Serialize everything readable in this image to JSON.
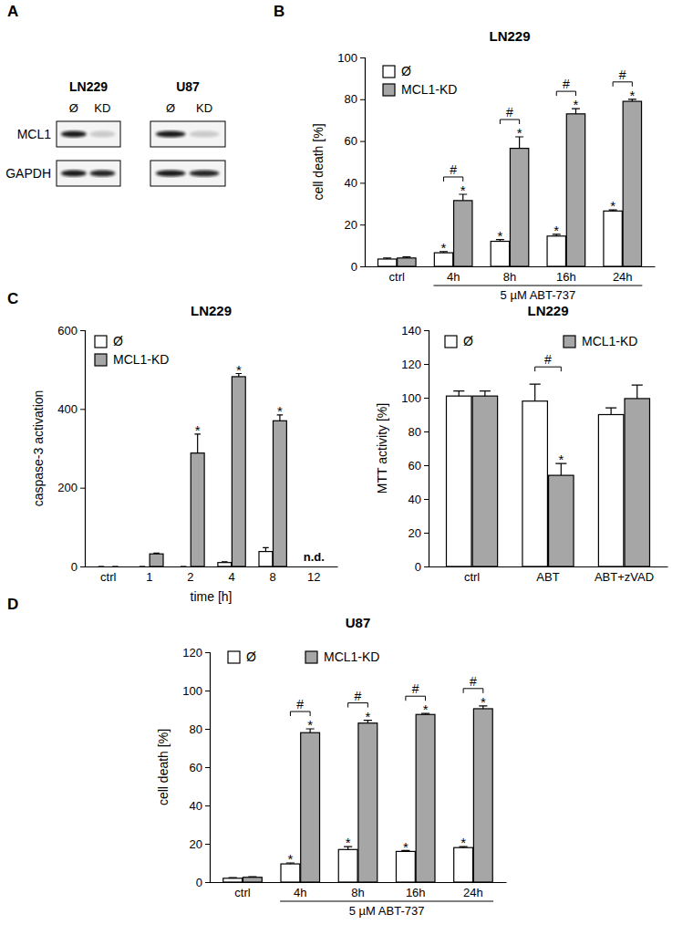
{
  "panels": [
    "A",
    "B",
    "C",
    "D"
  ],
  "blot": {
    "cell_lines": [
      "LN229",
      "U87"
    ],
    "lanes": [
      "Ø",
      "KD"
    ],
    "proteins": [
      "MCL1",
      "GAPDH"
    ]
  },
  "chart_data": [
    {
      "type": "bar",
      "title": "LN229",
      "y_label": "cell death [%]",
      "categories": [
        "ctrl",
        "4h",
        "8h",
        "16h",
        "24h"
      ],
      "series": [
        {
          "name": "Ø",
          "color": "#ffffff",
          "values": [
            3.5,
            6.5,
            12,
            14.5,
            26.5
          ],
          "errors": [
            0.5,
            0.5,
            0.8,
            0.8,
            0.5
          ],
          "significance": [
            null,
            "*",
            "*",
            "*",
            "*"
          ]
        },
        {
          "name": "MCL1-KD",
          "color": "#a6a6a6",
          "values": [
            4,
            31.5,
            56.5,
            73,
            79
          ],
          "errors": [
            0.5,
            3,
            5.5,
            2.5,
            1
          ],
          "significance": [
            null,
            "*",
            "*",
            "*",
            "*"
          ]
        }
      ],
      "comparison": [
        null,
        "#",
        "#",
        "#",
        "#"
      ],
      "annotations": [
        {
          "text": "5 µM ABT-737",
          "from": "4h",
          "to": "24h"
        }
      ],
      "ylim": [
        0,
        100
      ],
      "yticks": [
        0,
        20,
        40,
        60,
        80,
        100
      ],
      "legend": "upper left"
    },
    {
      "type": "bar",
      "title": "LN229",
      "y_label": "caspase-3 activation",
      "x_label": "time [h]",
      "categories": [
        "ctrl",
        "1",
        "2",
        "4",
        "8",
        "12"
      ],
      "series": [
        {
          "name": "Ø",
          "color": "#ffffff",
          "values": [
            0,
            0,
            0,
            10,
            38,
            null
          ],
          "errors": [
            0,
            0,
            0,
            2,
            10,
            null
          ]
        },
        {
          "name": "MCL1-KD",
          "color": "#a6a6a6",
          "values": [
            0,
            32,
            288,
            482,
            370,
            null
          ],
          "errors": [
            0,
            2,
            48,
            8,
            15,
            null
          ],
          "significance": [
            null,
            null,
            "*",
            "*",
            "*",
            null
          ]
        }
      ],
      "annotations": [
        {
          "text": "n.d.",
          "category": "12"
        }
      ],
      "ylim": [
        0,
        600
      ],
      "yticks": [
        0,
        200,
        400,
        600
      ],
      "legend": "upper left"
    },
    {
      "type": "bar",
      "title": "LN229",
      "y_label": "MTT activity [%]",
      "categories": [
        "ctrl",
        "ABT",
        "ABT+zVAD"
      ],
      "series": [
        {
          "name": "Ø",
          "color": "#ffffff",
          "values": [
            101,
            98,
            90
          ],
          "errors": [
            3,
            10,
            4
          ]
        },
        {
          "name": "MCL1-KD",
          "color": "#a6a6a6",
          "values": [
            101,
            54,
            99.5
          ],
          "errors": [
            3,
            7,
            8
          ],
          "significance": [
            null,
            "*",
            null
          ]
        }
      ],
      "comparison": [
        null,
        "#",
        null
      ],
      "ylim": [
        0,
        140
      ],
      "yticks": [
        0,
        20,
        40,
        60,
        80,
        100,
        120,
        140
      ],
      "legend": "top"
    },
    {
      "type": "bar",
      "title": "U87",
      "y_label": "cell death [%]",
      "categories": [
        "ctrl",
        "4h",
        "8h",
        "16h",
        "24h"
      ],
      "series": [
        {
          "name": "Ø",
          "color": "#ffffff",
          "values": [
            2,
            9.5,
            17,
            16,
            18
          ],
          "errors": [
            0.3,
            0.5,
            1.5,
            0.5,
            0.5
          ],
          "significance": [
            null,
            "*",
            "*",
            "*",
            "*"
          ]
        },
        {
          "name": "MCL1-KD",
          "color": "#a6a6a6",
          "values": [
            2.5,
            78,
            83,
            87.5,
            90.5
          ],
          "errors": [
            0.3,
            2,
            1.5,
            0.5,
            1.5
          ],
          "significance": [
            null,
            "*",
            "*",
            "*",
            "*"
          ]
        }
      ],
      "comparison": [
        null,
        "#",
        "#",
        "#",
        "#"
      ],
      "annotations": [
        {
          "text": "5 µM ABT-737",
          "from": "4h",
          "to": "24h"
        }
      ],
      "ylim": [
        0,
        120
      ],
      "yticks": [
        0,
        20,
        40,
        60,
        80,
        100,
        120
      ],
      "legend": "top"
    }
  ]
}
